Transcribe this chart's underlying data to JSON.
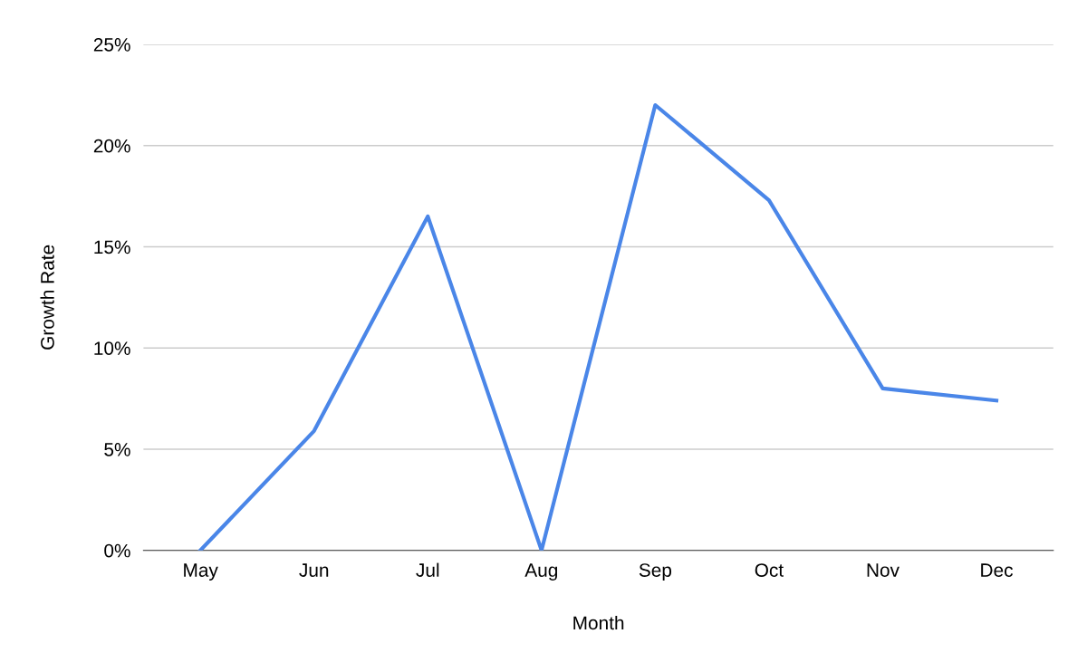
{
  "chart_data": {
    "type": "line",
    "xlabel": "Month",
    "ylabel": "Growth Rate",
    "categories": [
      "May",
      "Jun",
      "Jul",
      "Aug",
      "Sep",
      "Oct",
      "Nov",
      "Dec"
    ],
    "series": [
      {
        "color": "#4a86e8",
        "values": [
          0,
          5.9,
          16.5,
          0,
          22.0,
          17.3,
          8.0,
          7.4
        ]
      }
    ],
    "ylim": [
      0,
      25
    ],
    "yticks": [
      {
        "value": 0,
        "label": "0%"
      },
      {
        "value": 5,
        "label": "5%"
      },
      {
        "value": 10,
        "label": "10%"
      },
      {
        "value": 15,
        "label": "15%"
      },
      {
        "value": 20,
        "label": "20%"
      },
      {
        "value": 25,
        "label": "25%"
      }
    ],
    "grid": "y",
    "legend": false,
    "marker": "none",
    "line_style": "solid"
  }
}
